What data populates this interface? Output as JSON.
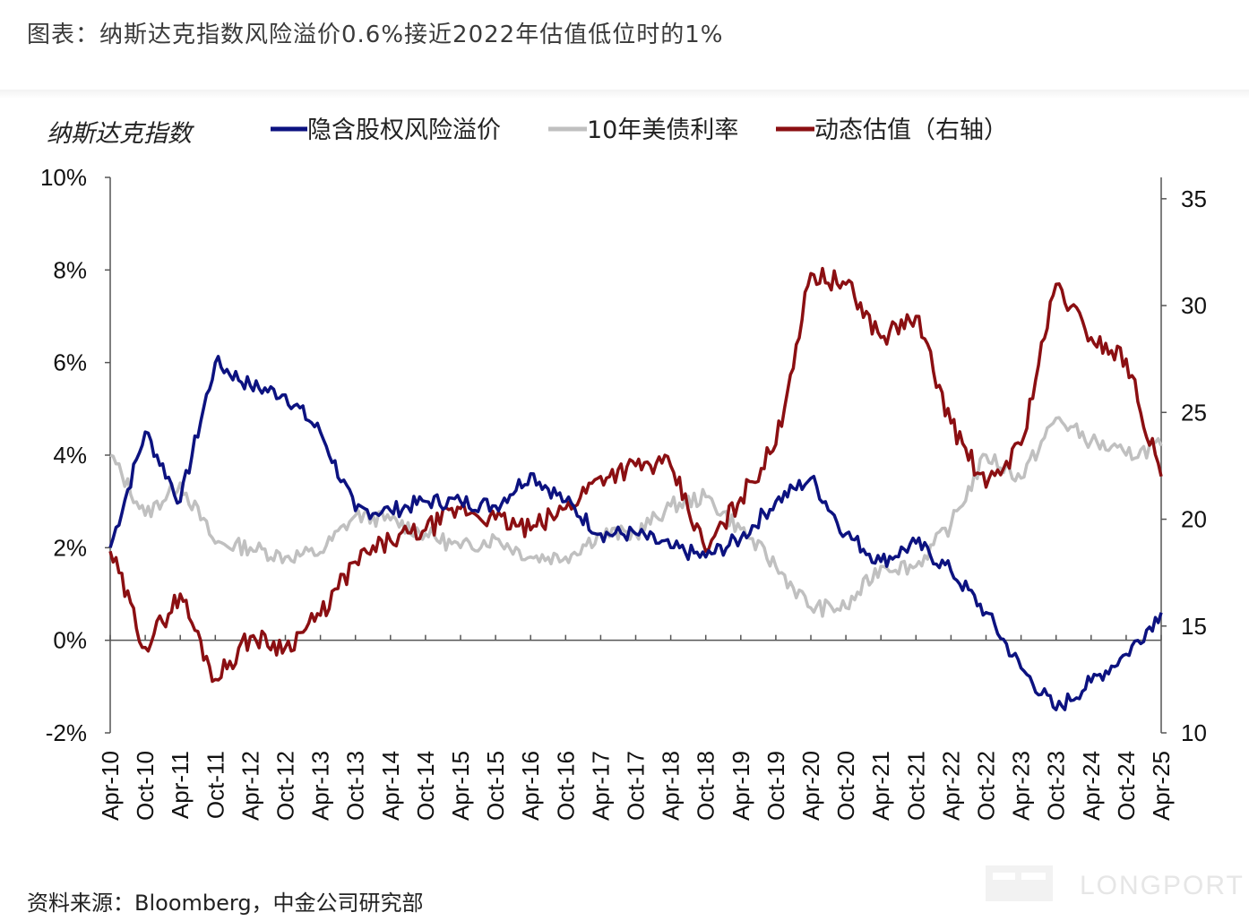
{
  "caption": "图表：纳斯达克指数风险溢价0.6%接近2022年估值低位时的1%",
  "source": "资料来源：Bloomberg，中金公司研究部",
  "watermark": "LONGPORT",
  "chart_data": {
    "type": "line",
    "title": "纳斯达克指数",
    "legend_position": "top",
    "grid": false,
    "x": [
      "Apr-10",
      "Oct-10",
      "Apr-11",
      "Oct-11",
      "Apr-12",
      "Oct-12",
      "Apr-13",
      "Oct-13",
      "Apr-14",
      "Oct-14",
      "Apr-15",
      "Oct-15",
      "Apr-16",
      "Oct-16",
      "Apr-17",
      "Oct-17",
      "Apr-18",
      "Oct-18",
      "Apr-19",
      "Oct-19",
      "Apr-20",
      "Oct-20",
      "Apr-21",
      "Oct-21",
      "Apr-22",
      "Oct-22",
      "Apr-23",
      "Oct-23",
      "Apr-24",
      "Oct-24",
      "Apr-25"
    ],
    "y_left": {
      "range": [
        -2,
        10
      ],
      "ticks": [
        "-2%",
        "0%",
        "2%",
        "4%",
        "6%",
        "8%",
        "10%"
      ],
      "tick_values": [
        -2,
        0,
        2,
        4,
        6,
        8,
        10
      ],
      "negative_color": "#e0282e"
    },
    "y_right": {
      "range": [
        10,
        36
      ],
      "ticks": [
        "10",
        "15",
        "20",
        "25",
        "30",
        "35"
      ],
      "tick_values": [
        10,
        15,
        20,
        25,
        30,
        35
      ]
    },
    "series": [
      {
        "name": "隐含股权风险溢价",
        "axis": "left",
        "color": "#0c1280",
        "values": [
          2.0,
          4.5,
          3.0,
          6.0,
          5.5,
          5.3,
          4.5,
          2.8,
          2.8,
          3.0,
          3.0,
          2.9,
          3.6,
          3.0,
          2.3,
          2.3,
          2.0,
          1.8,
          2.2,
          3.0,
          3.5,
          2.3,
          1.7,
          2.1,
          1.5,
          0.6,
          -0.6,
          -1.5,
          -0.9,
          -0.3,
          0.6
        ]
      },
      {
        "name": "10年美债利率",
        "axis": "left",
        "color": "#c0c0c0",
        "values": [
          4.0,
          2.7,
          3.4,
          2.1,
          2.0,
          1.8,
          1.9,
          2.7,
          2.6,
          2.3,
          2.0,
          2.2,
          1.8,
          1.8,
          2.3,
          2.3,
          2.9,
          3.1,
          2.4,
          1.6,
          0.7,
          0.7,
          1.6,
          1.6,
          2.5,
          4.0,
          3.5,
          4.8,
          4.3,
          4.0,
          4.2
        ]
      },
      {
        "name": "动态估值（右轴）",
        "axis": "right",
        "color": "#8b0f12",
        "values": [
          18.5,
          14.0,
          16.5,
          12.5,
          14.5,
          14.0,
          15.5,
          18.0,
          19.0,
          19.5,
          20.5,
          20.0,
          19.5,
          20.5,
          22.0,
          22.5,
          22.5,
          18.5,
          21.0,
          23.5,
          31.5,
          31.0,
          28.5,
          29.5,
          24.5,
          21.5,
          23.5,
          31.0,
          28.5,
          27.5,
          22.0
        ]
      }
    ]
  }
}
